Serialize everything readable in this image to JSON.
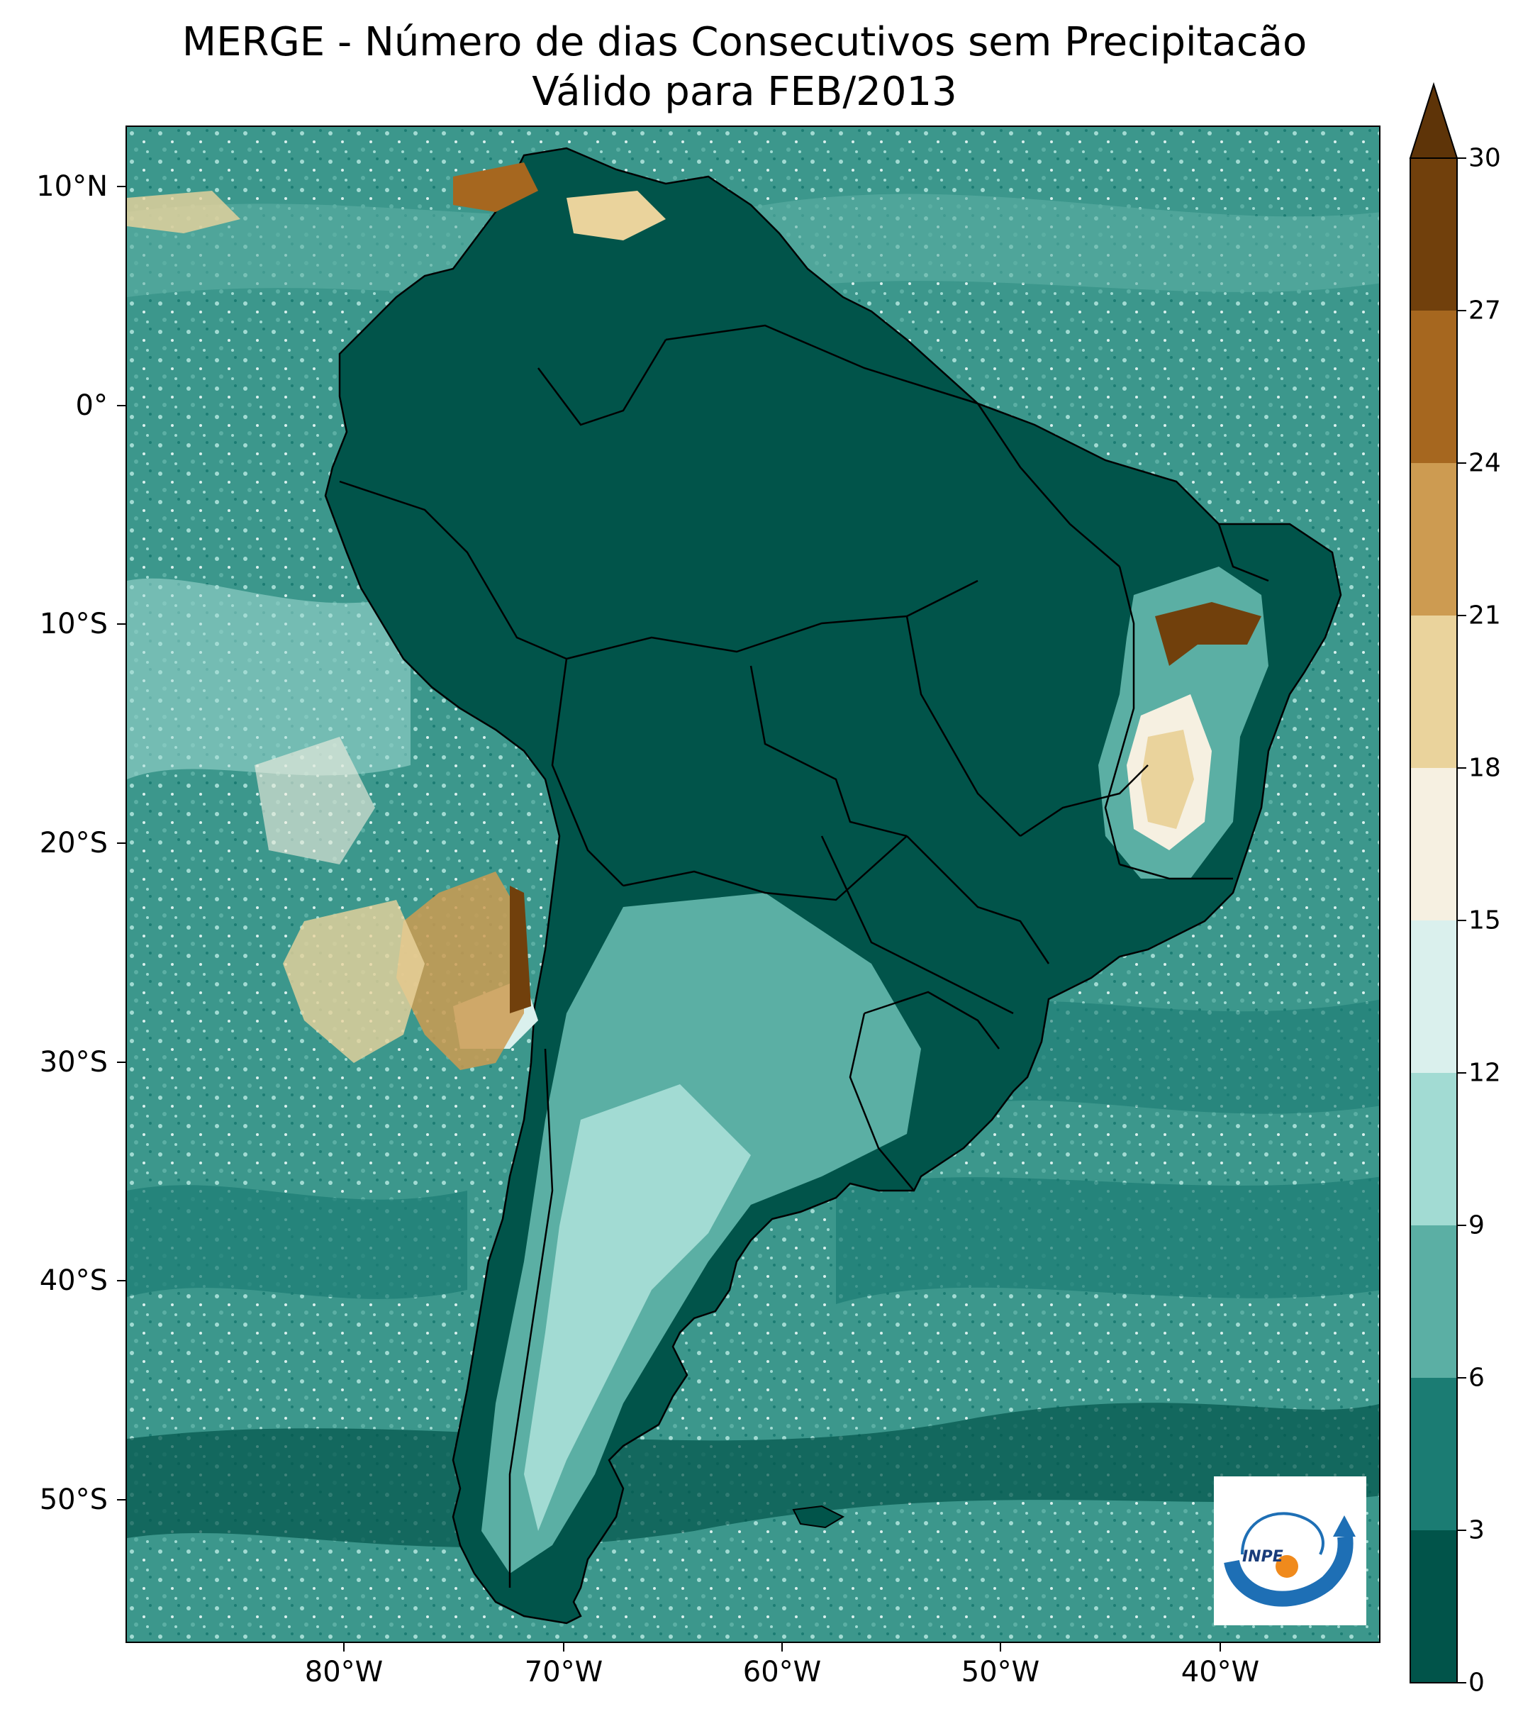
{
  "title": {
    "line1": "MERGE - Número de dias Consecutivos sem Precipitacão",
    "line2": "Válido para FEB/2013"
  },
  "axes": {
    "lat_labels": [
      "10°N",
      "0°",
      "10°S",
      "20°S",
      "30°S",
      "40°S",
      "50°S"
    ],
    "lon_labels": [
      "80°W",
      "70°W",
      "60°W",
      "50°W",
      "40°W"
    ]
  },
  "colorbar": {
    "ticks": [
      "0",
      "3",
      "6",
      "9",
      "12",
      "15",
      "18",
      "21",
      "24",
      "27",
      "30"
    ],
    "colors": [
      "#01544a",
      "#1b7c73",
      "#5bafa4",
      "#a2dbd3",
      "#daf0ed",
      "#f6f0e1",
      "#ead39c",
      "#cd9b51",
      "#a6671f",
      "#71400c"
    ],
    "extend_color": "#5e3408",
    "extend": "max"
  },
  "logo": {
    "text": "INPE"
  },
  "colors": {
    "ocean_bg": "#2f8c82",
    "land": "#01544a",
    "border": "#000000"
  }
}
